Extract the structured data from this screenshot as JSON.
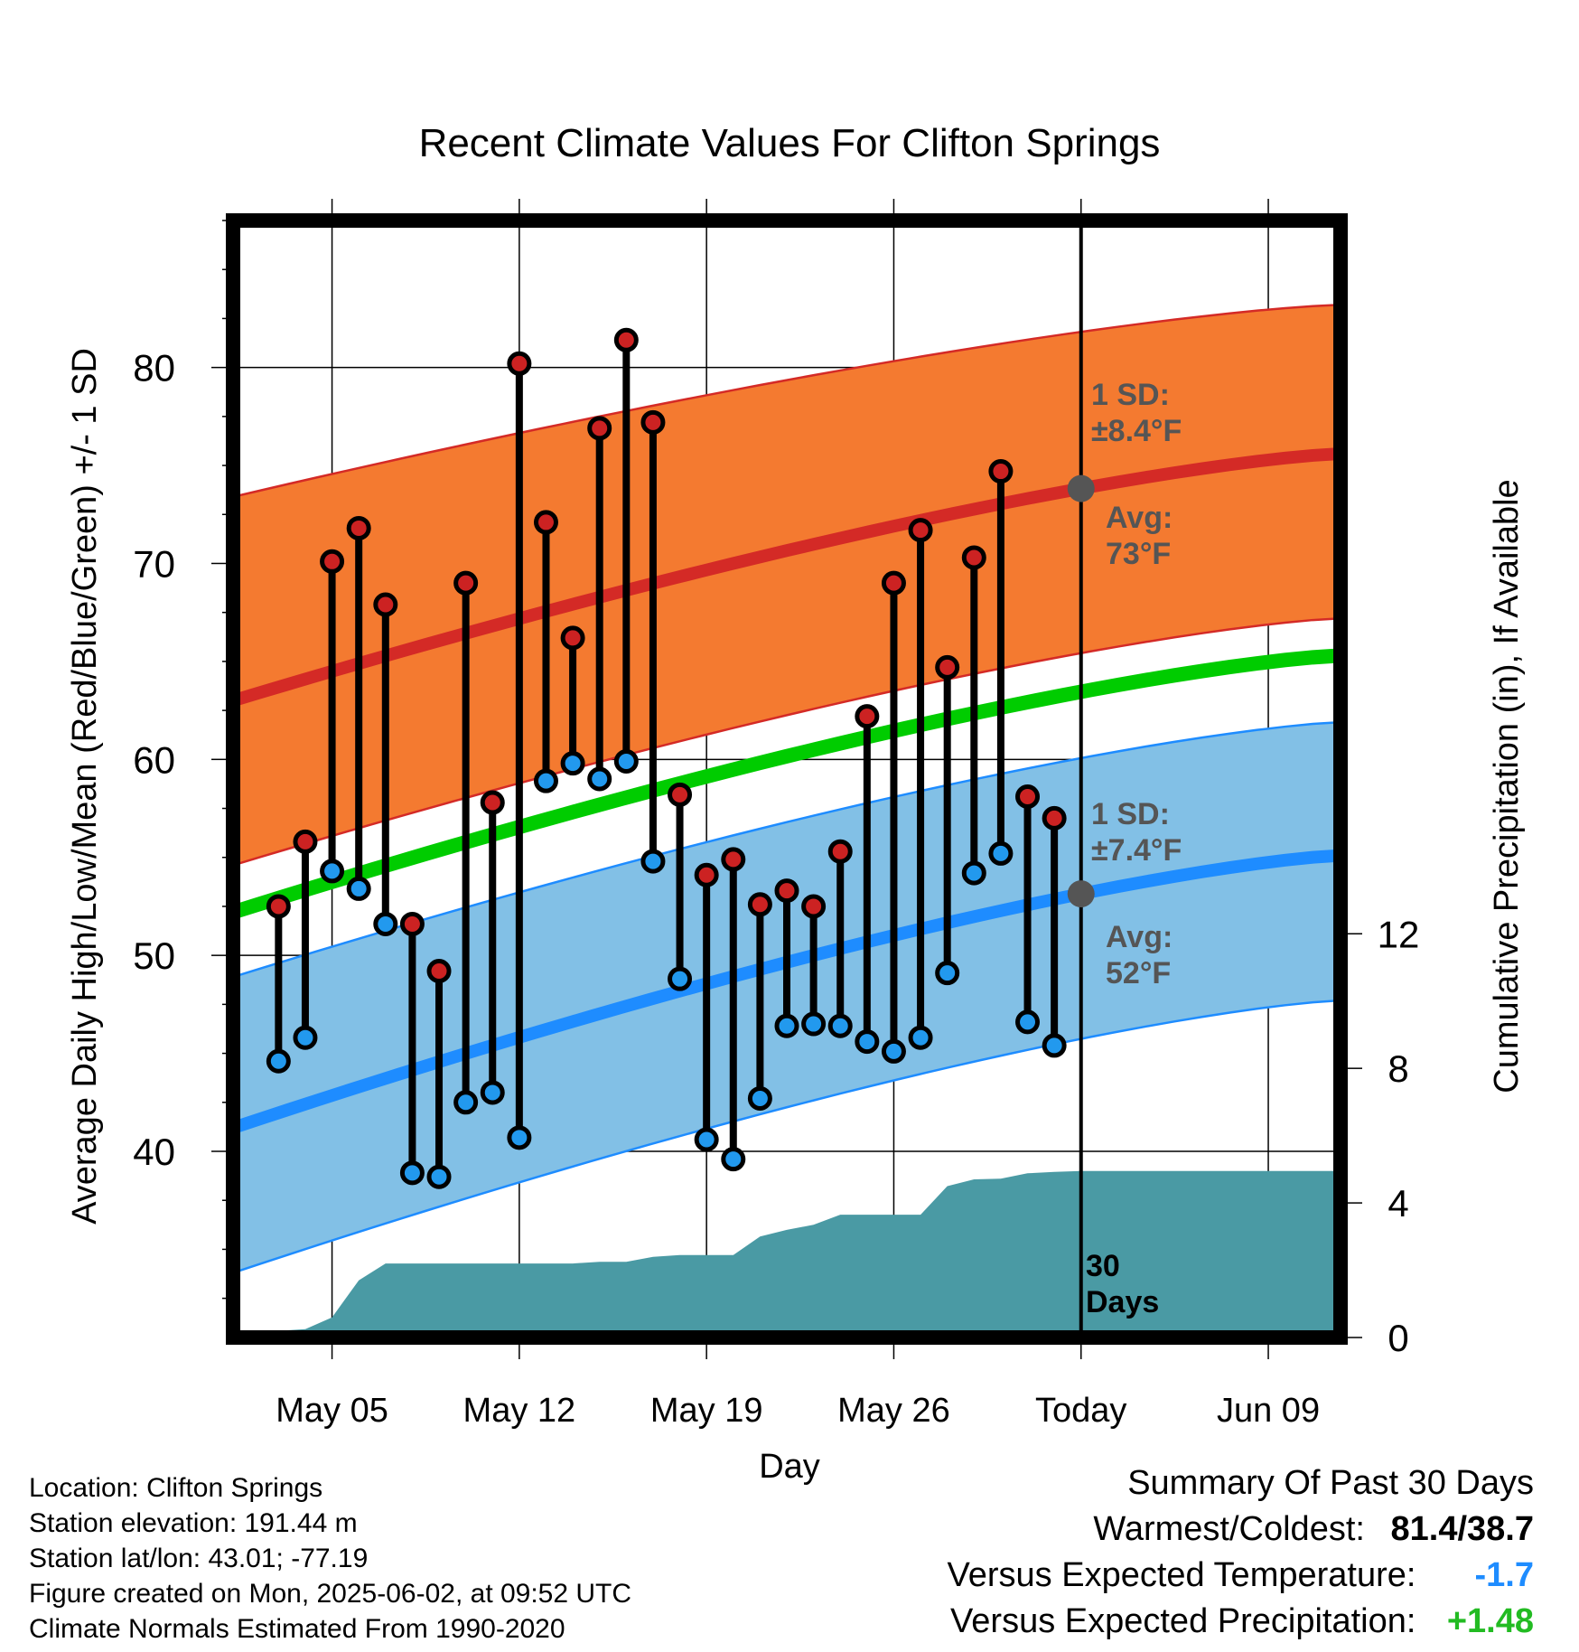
{
  "chart_data": {
    "type": "line",
    "title": "Recent Climate Values For Clifton Springs",
    "xlabel": "Day",
    "ylabel": "Average Daily High/Low/Mean (Red/Blue/Green) +/- 1 SD",
    "y2label": "Cumulative Precipitation (in), If Available",
    "x_tick_labels": [
      "May 05",
      "May 12",
      "May 19",
      "May 26",
      "Today",
      "Jun 09"
    ],
    "x_tick_days": [
      5,
      12,
      19,
      26,
      33,
      40
    ],
    "xlim": [
      1.3,
      42.7
    ],
    "ylim": [
      30.5,
      87.5
    ],
    "y_ticks": [
      40,
      50,
      60,
      70,
      80
    ],
    "y2lim": [
      0,
      33.2
    ],
    "y2_ticks": [
      0,
      4,
      8,
      12
    ],
    "grid": true,
    "today_day": 33,
    "today_label": [
      "30",
      "Days"
    ],
    "daily_high": [
      52.5,
      55.8,
      70.1,
      71.8,
      67.9,
      51.6,
      49.2,
      69.0,
      57.8,
      80.2,
      72.1,
      66.2,
      76.9,
      81.4,
      77.2,
      58.2,
      54.1,
      54.9,
      52.6,
      53.3,
      52.5,
      55.3,
      62.2,
      69.0,
      71.7,
      64.7,
      70.3,
      74.7,
      58.1,
      57.0
    ],
    "daily_low": [
      44.6,
      45.8,
      54.3,
      53.4,
      51.6,
      38.9,
      38.7,
      42.5,
      43.0,
      40.7,
      58.9,
      59.8,
      59.0,
      59.9,
      54.8,
      48.8,
      40.6,
      39.6,
      42.7,
      46.4,
      46.5,
      46.4,
      45.6,
      45.1,
      45.8,
      49.1,
      54.2,
      55.2,
      46.6,
      45.4
    ],
    "daily_days_start": 3,
    "normal_high": {
      "start": [
        63.0,
        73.4
      ],
      "end": [
        75.6,
        83.2
      ],
      "sd": 8.4
    },
    "normal_low": {
      "start": [
        41.2,
        48.9
      ],
      "end": [
        55.1,
        61.9
      ],
      "sd": 7.4
    },
    "normal_mean": {
      "start": 52.2,
      "end": 65.3
    },
    "precip_x": [
      2,
      3,
      4,
      5,
      6,
      7,
      8,
      9,
      10,
      11,
      12,
      13,
      14,
      15,
      16,
      17,
      18,
      19,
      20,
      21,
      22,
      23,
      24,
      25,
      26,
      27,
      28,
      29,
      30,
      31,
      32,
      33,
      42.7
    ],
    "precip_cum": [
      0.0,
      0.2,
      0.25,
      0.6,
      1.7,
      2.2,
      2.2,
      2.2,
      2.2,
      2.2,
      2.2,
      2.2,
      2.2,
      2.25,
      2.25,
      2.4,
      2.45,
      2.45,
      2.45,
      3.0,
      3.2,
      3.35,
      3.65,
      3.65,
      3.65,
      3.65,
      4.5,
      4.7,
      4.72,
      4.88,
      4.92,
      4.95,
      4.95
    ],
    "annotations": {
      "high_sd": [
        "1 SD:",
        "±8.4°F"
      ],
      "high_avg": [
        "Avg:",
        "73°F"
      ],
      "low_sd": [
        "1 SD:",
        "±7.4°F"
      ],
      "low_avg": [
        "Avg:",
        "52°F"
      ]
    },
    "colors": {
      "high_band": "#f47a30",
      "high_line": "#d42a26",
      "low_band": "#82c0e6",
      "low_line": "#1e8cff",
      "mean_line": "#00cc00",
      "precip": "#4a9aa4",
      "marker_high": "#cc2222",
      "marker_low": "#2299ee",
      "annotation": "#555555"
    }
  },
  "footer": {
    "location": "Location: Clifton Springs",
    "elevation": "Station elevation: 191.44 m",
    "latlon": "Station lat/lon: 43.01; -77.19",
    "created": "Figure created on Mon, 2025-06-02, at 09:52 UTC",
    "normals": "Climate Normals Estimated From 1990-2020"
  },
  "summary": {
    "heading": "Summary Of Past 30 Days",
    "warm_cold_label": "Warmest/Coldest:",
    "warm_cold_value": "81.4/38.7",
    "temp_label": "Versus Expected Temperature:",
    "temp_value": "-1.7",
    "temp_color": "#1e8cff",
    "precip_label": "Versus Expected Precipitation:",
    "precip_value": "+1.48",
    "precip_color": "#22bb22"
  }
}
